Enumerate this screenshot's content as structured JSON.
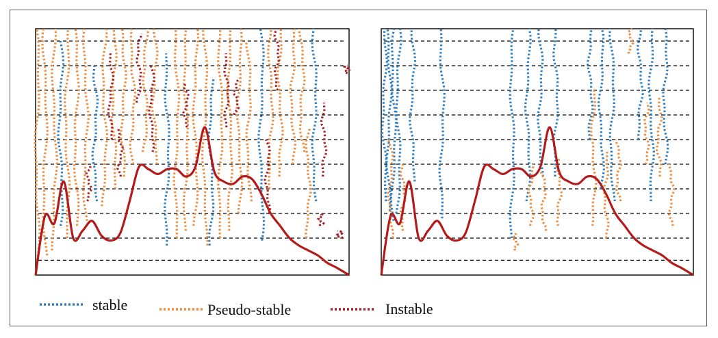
{
  "legend": {
    "stable_label": "stable",
    "pseudo_label": "Pseudo-stable",
    "instable_label": "Instable"
  },
  "colors": {
    "stable": "#2f7fc1",
    "pseudo_stable": "#ee8d3e",
    "instable": "#a52126",
    "signal": "#b31b1b",
    "gridline": "#000000"
  },
  "chart_data": [
    {
      "type": "line",
      "panel": "left",
      "grid": "horizontal dashed",
      "xlim": [
        0,
        100
      ],
      "ylim": [
        0,
        100
      ],
      "gridline_levels": [
        6,
        15,
        25,
        35,
        45,
        55,
        65,
        75,
        85,
        95
      ],
      "signal": {
        "x": [
          0,
          3,
          6,
          9,
          12,
          15,
          18,
          21,
          24,
          27,
          30,
          33,
          36,
          39,
          42,
          45,
          48,
          51,
          54,
          57,
          60,
          63,
          66,
          69,
          72,
          75,
          78,
          81,
          84,
          87,
          90,
          93,
          96,
          100
        ],
        "y": [
          0,
          24,
          21,
          38,
          15,
          18,
          22,
          16,
          14,
          17,
          30,
          44,
          43,
          41,
          43,
          43,
          40,
          44,
          60,
          42,
          38,
          37,
          40,
          39,
          33,
          25,
          20,
          15,
          12,
          10,
          8,
          5,
          3,
          0
        ]
      },
      "series": [
        {
          "name": "stable",
          "traces": [
            {
              "x": 8,
              "y_from": 20,
              "y_to": 95
            },
            {
              "x": 19,
              "y_from": 30,
              "y_to": 85
            },
            {
              "x": 42,
              "y_from": 12,
              "y_to": 90
            },
            {
              "x": 56,
              "y_from": 12,
              "y_to": 80
            },
            {
              "x": 72,
              "y_from": 14,
              "y_to": 100
            },
            {
              "x": 89,
              "y_from": 30,
              "y_to": 100
            }
          ]
        },
        {
          "name": "Pseudo-stable",
          "traces": [
            {
              "x": 0.5,
              "y_from": 6,
              "y_to": 100
            },
            {
              "x": 3,
              "y_from": 8,
              "y_to": 100
            },
            {
              "x": 6,
              "y_from": 10,
              "y_to": 100
            },
            {
              "x": 10,
              "y_from": 15,
              "y_to": 100
            },
            {
              "x": 13,
              "y_from": 20,
              "y_to": 100
            },
            {
              "x": 16,
              "y_from": 22,
              "y_to": 100
            },
            {
              "x": 22,
              "y_from": 28,
              "y_to": 100
            },
            {
              "x": 25,
              "y_from": 35,
              "y_to": 100
            },
            {
              "x": 28,
              "y_from": 40,
              "y_to": 100
            },
            {
              "x": 31,
              "y_from": 45,
              "y_to": 100
            },
            {
              "x": 35,
              "y_from": 50,
              "y_to": 100
            },
            {
              "x": 38,
              "y_from": 45,
              "y_to": 100
            },
            {
              "x": 45,
              "y_from": 15,
              "y_to": 100
            },
            {
              "x": 48,
              "y_from": 18,
              "y_to": 100
            },
            {
              "x": 51,
              "y_from": 20,
              "y_to": 100
            },
            {
              "x": 54,
              "y_from": 12,
              "y_to": 100
            },
            {
              "x": 59,
              "y_from": 15,
              "y_to": 100
            },
            {
              "x": 62,
              "y_from": 18,
              "y_to": 100
            },
            {
              "x": 65,
              "y_from": 25,
              "y_to": 100
            },
            {
              "x": 68,
              "y_from": 30,
              "y_to": 95
            },
            {
              "x": 75,
              "y_from": 35,
              "y_to": 100
            },
            {
              "x": 78,
              "y_from": 40,
              "y_to": 100
            },
            {
              "x": 82,
              "y_from": 45,
              "y_to": 100
            },
            {
              "x": 85,
              "y_from": 50,
              "y_to": 100
            },
            {
              "x": 87,
              "y_from": 15,
              "y_to": 60
            }
          ]
        },
        {
          "name": "Instable",
          "traces": [
            {
              "x": 24,
              "y_from": 55,
              "y_to": 90
            },
            {
              "x": 27,
              "y_from": 40,
              "y_to": 60
            },
            {
              "x": 33,
              "y_from": 70,
              "y_to": 98
            },
            {
              "x": 37,
              "y_from": 50,
              "y_to": 85
            },
            {
              "x": 48,
              "y_from": 60,
              "y_to": 78
            },
            {
              "x": 61,
              "y_from": 60,
              "y_to": 90
            },
            {
              "x": 64,
              "y_from": 65,
              "y_to": 80
            },
            {
              "x": 74,
              "y_from": 25,
              "y_to": 55
            },
            {
              "x": 77,
              "y_from": 75,
              "y_to": 100
            },
            {
              "x": 92,
              "y_from": 40,
              "y_to": 70
            },
            {
              "x": 91,
              "y_from": 20,
              "y_to": 25
            },
            {
              "x": 97,
              "y_from": 15,
              "y_to": 18
            },
            {
              "x": 99.5,
              "y_from": 82,
              "y_to": 85
            },
            {
              "x": 17,
              "y_from": 30,
              "y_to": 45
            }
          ]
        }
      ]
    },
    {
      "type": "line",
      "panel": "right",
      "grid": "horizontal dashed",
      "xlim": [
        0,
        100
      ],
      "ylim": [
        0,
        100
      ],
      "gridline_levels": [
        6,
        15,
        25,
        35,
        45,
        55,
        65,
        75,
        85,
        95
      ],
      "signal": {
        "x": [
          0,
          3,
          6,
          9,
          12,
          15,
          18,
          21,
          24,
          27,
          30,
          33,
          36,
          39,
          42,
          45,
          48,
          51,
          54,
          57,
          60,
          63,
          66,
          69,
          72,
          75,
          78,
          81,
          84,
          87,
          90,
          93,
          96,
          100
        ],
        "y": [
          0,
          24,
          21,
          38,
          15,
          18,
          22,
          16,
          14,
          17,
          30,
          44,
          43,
          41,
          43,
          43,
          40,
          44,
          60,
          42,
          38,
          37,
          40,
          39,
          33,
          25,
          20,
          15,
          12,
          10,
          8,
          5,
          3,
          0
        ]
      },
      "series": [
        {
          "name": "stable",
          "traces": [
            {
              "x": 1,
              "y_from": 30,
              "y_to": 100
            },
            {
              "x": 2.5,
              "y_from": 26,
              "y_to": 100
            },
            {
              "x": 4,
              "y_from": 22,
              "y_to": 100
            },
            {
              "x": 5.5,
              "y_from": 25,
              "y_to": 100
            },
            {
              "x": 10,
              "y_from": 38,
              "y_to": 100
            },
            {
              "x": 19.5,
              "y_from": 23,
              "y_to": 100
            },
            {
              "x": 42,
              "y_from": 15,
              "y_to": 100
            },
            {
              "x": 47,
              "y_from": 30,
              "y_to": 100
            },
            {
              "x": 51,
              "y_from": 40,
              "y_to": 100
            },
            {
              "x": 56,
              "y_from": 40,
              "y_to": 100
            },
            {
              "x": 67,
              "y_from": 55,
              "y_to": 100
            },
            {
              "x": 70.5,
              "y_from": 35,
              "y_to": 100
            },
            {
              "x": 74,
              "y_from": 30,
              "y_to": 100
            },
            {
              "x": 83,
              "y_from": 55,
              "y_to": 100
            },
            {
              "x": 86.5,
              "y_from": 30,
              "y_to": 100
            },
            {
              "x": 91,
              "y_from": 45,
              "y_to": 100
            }
          ]
        },
        {
          "name": "Pseudo-stable",
          "traces": [
            {
              "x": 3,
              "y_from": 15,
              "y_to": 55
            },
            {
              "x": 7,
              "y_from": 18,
              "y_to": 45
            },
            {
              "x": 43,
              "y_from": 10,
              "y_to": 17
            },
            {
              "x": 48,
              "y_from": 20,
              "y_to": 45
            },
            {
              "x": 52,
              "y_from": 18,
              "y_to": 42
            },
            {
              "x": 57,
              "y_from": 20,
              "y_to": 48
            },
            {
              "x": 68,
              "y_from": 20,
              "y_to": 75
            },
            {
              "x": 72,
              "y_from": 15,
              "y_to": 50
            },
            {
              "x": 76,
              "y_from": 30,
              "y_to": 55
            },
            {
              "x": 80,
              "y_from": 90,
              "y_to": 100
            },
            {
              "x": 85,
              "y_from": 45,
              "y_to": 70
            },
            {
              "x": 89,
              "y_from": 40,
              "y_to": 72
            },
            {
              "x": 93,
              "y_from": 20,
              "y_to": 45
            }
          ]
        }
      ]
    }
  ]
}
